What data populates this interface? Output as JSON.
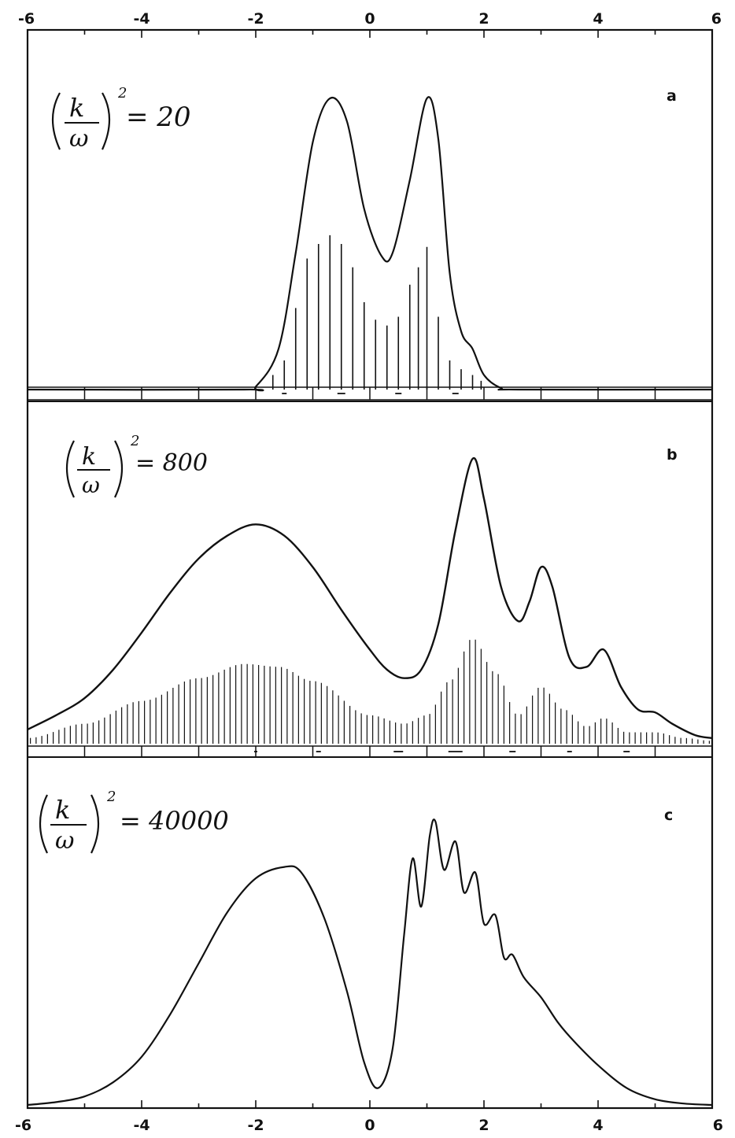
{
  "chart_data": [
    {
      "type": "line",
      "panel": "a",
      "annotation": {
        "num": "k",
        "den": "ω",
        "exponent": "2",
        "eq": "= 20"
      },
      "xlim": [
        -6,
        6
      ],
      "top_tick_labels": [
        "-6",
        "-4",
        "-2",
        "0",
        "2",
        "4",
        "6"
      ],
      "bottom_tick_labels": [],
      "grid": false,
      "envelope": [
        [
          -6,
          0
        ],
        [
          -2.2,
          0
        ],
        [
          -2.0,
          0.01
        ],
        [
          -1.6,
          0.14
        ],
        [
          -1.3,
          0.47
        ],
        [
          -1.0,
          0.85
        ],
        [
          -0.7,
          1.0
        ],
        [
          -0.4,
          0.92
        ],
        [
          -0.1,
          0.62
        ],
        [
          0.2,
          0.46
        ],
        [
          0.4,
          0.47
        ],
        [
          0.7,
          0.72
        ],
        [
          1.0,
          1.0
        ],
        [
          1.2,
          0.86
        ],
        [
          1.4,
          0.4
        ],
        [
          1.6,
          0.2
        ],
        [
          1.8,
          0.14
        ],
        [
          2.0,
          0.05
        ],
        [
          2.3,
          0.005
        ],
        [
          2.6,
          0
        ],
        [
          6,
          0
        ]
      ],
      "sticks": [
        [
          -1.7,
          0.05
        ],
        [
          -1.5,
          0.1
        ],
        [
          -1.3,
          0.28
        ],
        [
          -1.1,
          0.45
        ],
        [
          -0.9,
          0.5
        ],
        [
          -0.7,
          0.53
        ],
        [
          -0.5,
          0.5
        ],
        [
          -0.3,
          0.42
        ],
        [
          -0.1,
          0.3
        ],
        [
          0.1,
          0.24
        ],
        [
          0.3,
          0.22
        ],
        [
          0.5,
          0.25
        ],
        [
          0.7,
          0.36
        ],
        [
          0.85,
          0.42
        ],
        [
          1.0,
          0.49
        ],
        [
          1.2,
          0.25
        ],
        [
          1.4,
          0.1
        ],
        [
          1.6,
          0.07
        ],
        [
          1.8,
          0.05
        ],
        [
          1.95,
          0.03
        ]
      ]
    },
    {
      "type": "line",
      "panel": "b",
      "annotation": {
        "num": "k",
        "den": "ω",
        "exponent": "2",
        "eq": "= 800"
      },
      "xlim": [
        -6,
        6
      ],
      "top_tick_labels": [],
      "bottom_tick_labels": [],
      "grid": false,
      "envelope": [
        [
          -6,
          0.05
        ],
        [
          -5.5,
          0.1
        ],
        [
          -5,
          0.16
        ],
        [
          -4.5,
          0.26
        ],
        [
          -4,
          0.39
        ],
        [
          -3.5,
          0.53
        ],
        [
          -3,
          0.65
        ],
        [
          -2.5,
          0.73
        ],
        [
          -2,
          0.77
        ],
        [
          -1.5,
          0.73
        ],
        [
          -1,
          0.62
        ],
        [
          -0.5,
          0.47
        ],
        [
          0,
          0.33
        ],
        [
          0.3,
          0.26
        ],
        [
          0.6,
          0.23
        ],
        [
          0.9,
          0.26
        ],
        [
          1.2,
          0.42
        ],
        [
          1.5,
          0.75
        ],
        [
          1.8,
          1.0
        ],
        [
          2.0,
          0.86
        ],
        [
          2.3,
          0.55
        ],
        [
          2.6,
          0.43
        ],
        [
          2.8,
          0.5
        ],
        [
          3.0,
          0.62
        ],
        [
          3.2,
          0.55
        ],
        [
          3.5,
          0.3
        ],
        [
          3.8,
          0.27
        ],
        [
          4.1,
          0.33
        ],
        [
          4.4,
          0.2
        ],
        [
          4.7,
          0.12
        ],
        [
          5.0,
          0.11
        ],
        [
          5.3,
          0.07
        ],
        [
          5.7,
          0.03
        ],
        [
          6,
          0.02
        ]
      ],
      "sticks_peak_profile": [
        [
          -6,
          0.02
        ],
        [
          -5,
          0.07
        ],
        [
          -4,
          0.15
        ],
        [
          -3,
          0.23
        ],
        [
          -2.2,
          0.28
        ],
        [
          -1.6,
          0.27
        ],
        [
          -1,
          0.22
        ],
        [
          0,
          0.1
        ],
        [
          0.6,
          0.07
        ],
        [
          1.0,
          0.1
        ],
        [
          1.4,
          0.22
        ],
        [
          1.8,
          0.37
        ],
        [
          2.2,
          0.25
        ],
        [
          2.6,
          0.1
        ],
        [
          3.0,
          0.2
        ],
        [
          3.4,
          0.12
        ],
        [
          3.8,
          0.06
        ],
        [
          4.1,
          0.09
        ],
        [
          4.5,
          0.04
        ],
        [
          5.0,
          0.04
        ],
        [
          5.5,
          0.02
        ],
        [
          6,
          0.01
        ]
      ]
    },
    {
      "type": "line",
      "panel": "c",
      "annotation": {
        "num": "k",
        "den": "ω",
        "exponent": "2",
        "eq": "= 40000"
      },
      "xlim": [
        -6,
        6
      ],
      "top_tick_labels": [],
      "bottom_tick_labels": [
        "-6",
        "-4",
        "-2",
        "0",
        "2",
        "4",
        "6"
      ],
      "grid": false,
      "envelope": [
        [
          -6,
          0
        ],
        [
          -5.5,
          0.01
        ],
        [
          -5,
          0.03
        ],
        [
          -4.5,
          0.08
        ],
        [
          -4,
          0.17
        ],
        [
          -3.5,
          0.32
        ],
        [
          -3,
          0.5
        ],
        [
          -2.5,
          0.68
        ],
        [
          -2,
          0.8
        ],
        [
          -1.5,
          0.84
        ],
        [
          -1.2,
          0.82
        ],
        [
          -0.8,
          0.66
        ],
        [
          -0.4,
          0.4
        ],
        [
          -0.1,
          0.15
        ],
        [
          0.15,
          0.06
        ],
        [
          0.4,
          0.2
        ],
        [
          0.6,
          0.6
        ],
        [
          0.75,
          0.87
        ],
        [
          0.9,
          0.7
        ],
        [
          1.05,
          0.95
        ],
        [
          1.15,
          1.0
        ],
        [
          1.3,
          0.83
        ],
        [
          1.5,
          0.93
        ],
        [
          1.65,
          0.75
        ],
        [
          1.85,
          0.82
        ],
        [
          2.0,
          0.64
        ],
        [
          2.2,
          0.67
        ],
        [
          2.35,
          0.52
        ],
        [
          2.5,
          0.53
        ],
        [
          2.7,
          0.45
        ],
        [
          3.0,
          0.38
        ],
        [
          3.3,
          0.29
        ],
        [
          3.6,
          0.22
        ],
        [
          4.0,
          0.14
        ],
        [
          4.5,
          0.06
        ],
        [
          5.0,
          0.02
        ],
        [
          5.5,
          0.005
        ],
        [
          6,
          0
        ]
      ]
    }
  ]
}
